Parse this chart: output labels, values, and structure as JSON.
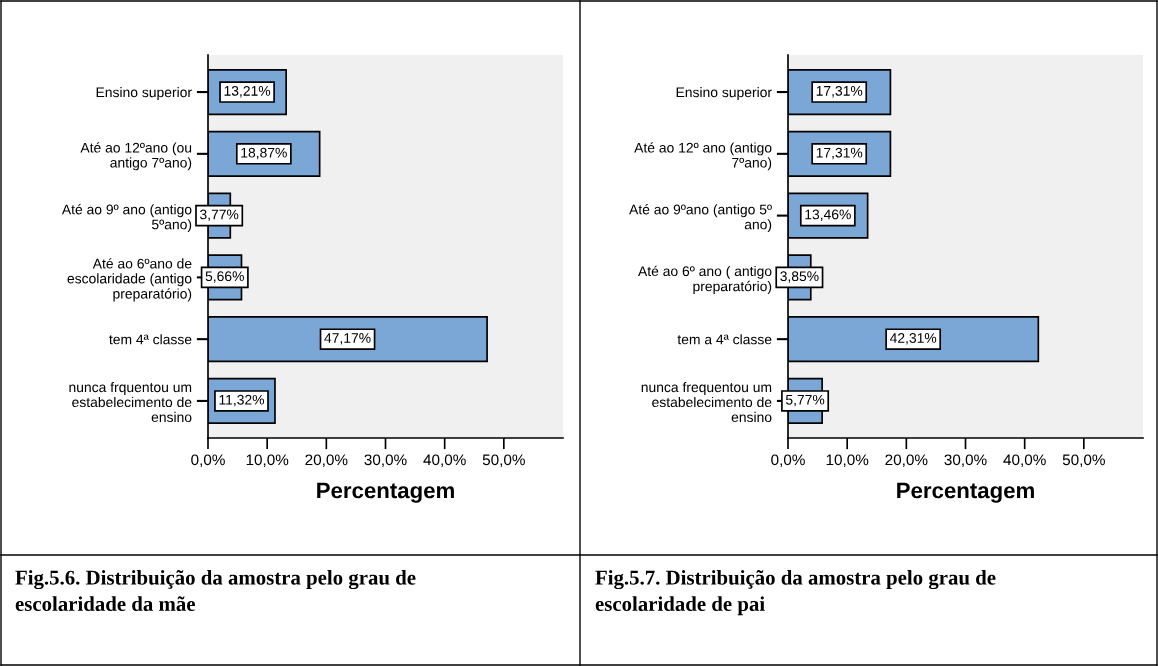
{
  "chart_data": [
    {
      "type": "bar",
      "orientation": "horizontal",
      "xlabel": "Percentagem",
      "categories": [
        "Ensino superior",
        "Até ao 12ºano (ou\nantigo 7ºano)",
        "Até ao 9º ano (antigo\n5ºano)",
        "Até ao 6ºano de\nescolaridade (antigo\npreparatório)",
        "tem 4ª classe",
        "nunca frquentou um\nestabelecimento de\nensino"
      ],
      "values": [
        13.21,
        18.87,
        3.77,
        5.66,
        47.17,
        11.32
      ],
      "value_labels": [
        "13,21%",
        "18,87%",
        "3,77%",
        "5,66%",
        "47,17%",
        "11,32%"
      ],
      "color": "#7ba7d6",
      "xlim": [
        0,
        60
      ],
      "xticks": [
        {
          "value": 0,
          "label": "0,0%"
        },
        {
          "value": 10,
          "label": "10,0%"
        },
        {
          "value": 20,
          "label": "20,0%"
        },
        {
          "value": 30,
          "label": "30,0%"
        },
        {
          "value": 40,
          "label": "40,0%"
        },
        {
          "value": 50,
          "label": "50,0%"
        }
      ],
      "grid": false,
      "legend": false,
      "annotations": [
        "Fig.5.6. Distribuição da amostra pelo grau de\nescolaridade da mãe"
      ]
    },
    {
      "type": "bar",
      "orientation": "horizontal",
      "xlabel": "Percentagem",
      "categories": [
        "Ensino superior",
        "Até ao 12º ano (antigo\n7ºano)",
        "Até ao 9ºano (antigo 5º\nano)",
        "Até ao 6º ano ( antigo\npreparatório)",
        "tem a 4ª classe",
        "nunca frequentou um\nestabelecimento de\nensino"
      ],
      "values": [
        17.31,
        17.31,
        13.46,
        3.85,
        42.31,
        5.77
      ],
      "value_labels": [
        "17,31%",
        "17,31%",
        "13,46%",
        "3,85%",
        "42,31%",
        "5,77%"
      ],
      "color": "#7ba7d6",
      "xlim": [
        0,
        60
      ],
      "xticks": [
        {
          "value": 0,
          "label": "0,0%"
        },
        {
          "value": 10,
          "label": "10,0%"
        },
        {
          "value": 20,
          "label": "20,0%"
        },
        {
          "value": 30,
          "label": "30,0%"
        },
        {
          "value": 40,
          "label": "40,0%"
        },
        {
          "value": 50,
          "label": "50,0%"
        }
      ],
      "grid": false,
      "legend": false,
      "annotations": [
        "Fig.5.7. Distribuição da amostra pelo grau de\nescolaridade de pai"
      ]
    }
  ]
}
